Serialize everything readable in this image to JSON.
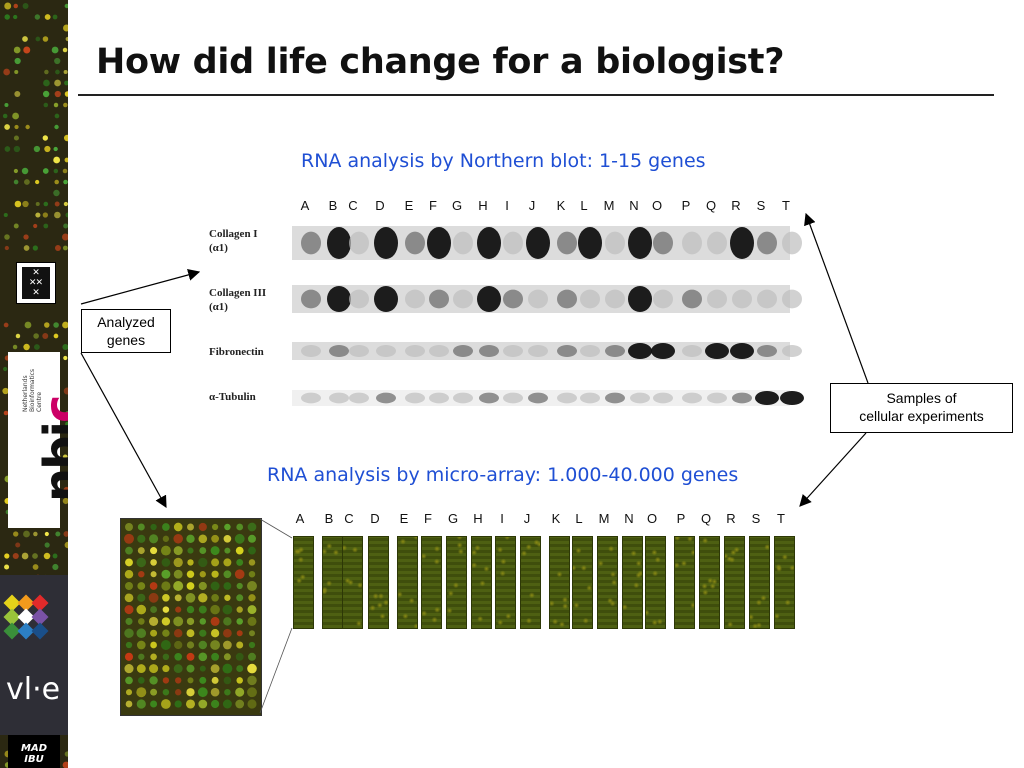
{
  "slide": {
    "title": "How did life change for a biologist?"
  },
  "northern": {
    "heading": "RNA analysis by Northern blot: 1-15 genes",
    "lanes": [
      "A",
      "B",
      "C",
      "D",
      "E",
      "F",
      "G",
      "H",
      "I",
      "J",
      "K",
      "L",
      "M",
      "N",
      "O",
      "P",
      "Q",
      "R",
      "S",
      "T"
    ],
    "genes": [
      {
        "line1": "Collagen I",
        "line2": "(α1)"
      },
      {
        "line1": "Collagen III",
        "line2": "(α1)"
      },
      {
        "line1": "Fibronectin",
        "line2": ""
      },
      {
        "line1": "α-Tubulin",
        "line2": ""
      }
    ]
  },
  "microarray": {
    "heading": "RNA analysis by micro-array: 1.000-40.000 genes",
    "lanes": [
      "A",
      "B",
      "C",
      "D",
      "E",
      "F",
      "G",
      "H",
      "I",
      "J",
      "K",
      "L",
      "M",
      "N",
      "O",
      "P",
      "Q",
      "R",
      "S",
      "T"
    ]
  },
  "callouts": {
    "analyzed_genes": {
      "line1": "Analyzed",
      "line2": "genes"
    },
    "samples": {
      "line1": "Samples of",
      "line2": "cellular experiments"
    }
  },
  "sidebar": {
    "nbic_small": "Netherlands\nBioinformatics\nCentre",
    "nbic_logo": "nbic",
    "vle_logo": "vl·e",
    "madibu_logo": "MAD\nIBU"
  },
  "colors": {
    "heading_blue": "#1f4fd4",
    "sidebar_dark": "#2b2812",
    "array_green": "#4b5c10"
  }
}
